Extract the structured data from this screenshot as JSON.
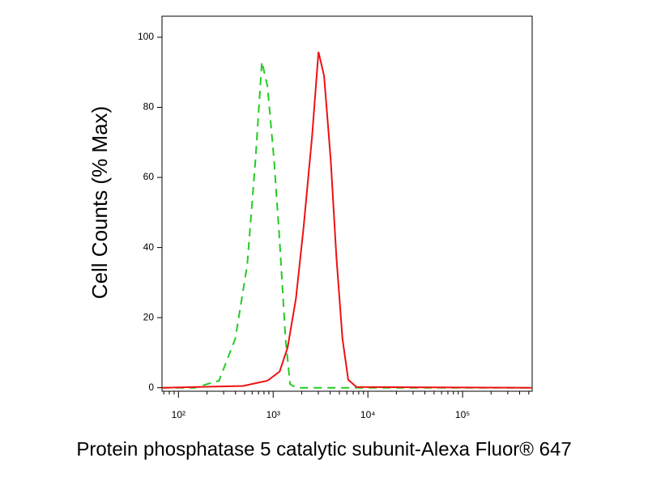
{
  "chart_data": {
    "type": "line",
    "x_label": "Protein phosphatase 5 catalytic subunit-Alexa Fluor® 647",
    "y_label": "Cell Counts (% Max)",
    "x_scale": "log",
    "xlim": [
      67,
      543000
    ],
    "xticks": [
      {
        "value": 100,
        "label": "10²"
      },
      {
        "value": 1000,
        "label": "10³"
      },
      {
        "value": 10000,
        "label": "10⁴"
      },
      {
        "value": 100000,
        "label": "10⁵"
      }
    ],
    "ylim": [
      -1,
      106
    ],
    "yticks": [
      0,
      20,
      40,
      60,
      80,
      100
    ],
    "series": [
      {
        "color": "#22cc22",
        "line_style": "dashed",
        "x": [
          67,
          148,
          268,
          398,
          532,
          650,
          760,
          870,
          1020,
          1170,
          1350,
          1510,
          1740,
          543000
        ],
        "values": [
          0,
          0,
          2,
          14,
          35,
          65,
          93,
          86,
          65,
          42,
          14,
          1,
          0,
          0
        ]
      },
      {
        "color": "#ee1111",
        "line_style": "solid",
        "x": [
          67,
          480,
          870,
          1170,
          1420,
          1740,
          2100,
          2570,
          3010,
          3450,
          4050,
          4660,
          5390,
          6200,
          7570,
          543000
        ],
        "values": [
          0,
          0.5,
          2,
          4.6,
          11.5,
          25.5,
          46,
          71.5,
          95.8,
          89,
          65,
          37,
          14,
          2.3,
          0.2,
          0
        ]
      }
    ]
  }
}
